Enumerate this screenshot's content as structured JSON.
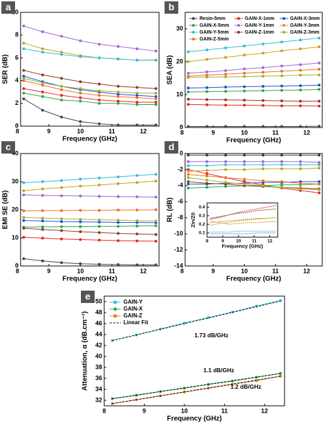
{
  "chart_data": [
    {
      "panel": "a",
      "type": "line",
      "xlabel": "Frequency (GHz)",
      "ylabel": "SER (dB)",
      "xlim": [
        8.1,
        12.5
      ],
      "xticks": [
        8,
        9,
        10,
        11,
        12
      ],
      "ylim": [
        0,
        10
      ],
      "yticks": [
        0,
        2,
        4,
        6,
        8,
        10
      ],
      "x": [
        8.2,
        8.8,
        9.4,
        10.0,
        10.6,
        11.2,
        11.8,
        12.4
      ],
      "series": [
        {
          "color": "#444444",
          "values": [
            2.4,
            1.4,
            0.8,
            0.4,
            0.2,
            0.1,
            0.1,
            0.1
          ]
        },
        {
          "color": "#e8251f",
          "values": [
            3.3,
            3.0,
            2.7,
            2.5,
            2.3,
            2.2,
            2.1,
            2.1
          ]
        },
        {
          "color": "#1f4fd8",
          "values": [
            4.4,
            3.9,
            3.5,
            3.2,
            3.0,
            2.8,
            2.7,
            2.6
          ]
        },
        {
          "color": "#2aa84a",
          "values": [
            2.9,
            2.6,
            2.3,
            2.2,
            2.0,
            2.0,
            1.9,
            1.9
          ]
        },
        {
          "color": "#a066d8",
          "values": [
            8.8,
            8.3,
            7.9,
            7.5,
            7.2,
            7.0,
            6.8,
            6.6
          ]
        },
        {
          "color": "#c8a020",
          "values": [
            7.3,
            6.8,
            6.5,
            6.2,
            6.0,
            5.9,
            5.8,
            5.8
          ]
        },
        {
          "color": "#30c0d0",
          "values": [
            6.8,
            6.5,
            6.3,
            6.1,
            6.0,
            5.9,
            5.8,
            5.8
          ]
        },
        {
          "color": "#8b3a2a",
          "values": [
            4.9,
            4.5,
            4.2,
            3.9,
            3.7,
            3.5,
            3.4,
            3.3
          ]
        },
        {
          "color": "#a0b030",
          "values": [
            4.2,
            3.8,
            3.5,
            3.3,
            3.1,
            3.0,
            2.9,
            2.9
          ]
        },
        {
          "color": "#f07020",
          "values": [
            4.0,
            3.6,
            3.2,
            2.9,
            2.7,
            2.6,
            2.5,
            2.4
          ]
        }
      ]
    },
    {
      "panel": "b",
      "type": "line",
      "xlabel": "Frequency (GHz)",
      "ylabel": "SEA (dB)",
      "xlim": [
        8.1,
        12.5
      ],
      "xticks": [
        8,
        9,
        10,
        11,
        12
      ],
      "ylim": [
        0,
        35
      ],
      "yticks": [
        0,
        10,
        20,
        30
      ],
      "x": [
        8.2,
        8.8,
        9.4,
        10.0,
        10.6,
        11.2,
        11.8,
        12.4
      ],
      "series": [
        {
          "name": "Resin-5mm",
          "color": "#444444",
          "values": [
            0.3,
            0.3,
            0.3,
            0.3,
            0.3,
            0.3,
            0.3,
            0.4
          ]
        },
        {
          "name": "GAIN-X-1mm",
          "color": "#e8251f",
          "values": [
            7.0,
            6.9,
            6.8,
            6.8,
            6.7,
            6.6,
            6.6,
            6.5
          ]
        },
        {
          "name": "GAIN-X-3mm",
          "color": "#1f4fd8",
          "values": [
            12.0,
            12.1,
            12.3,
            12.4,
            12.5,
            12.6,
            12.7,
            12.9
          ]
        },
        {
          "name": "GAIN-X-5mm",
          "color": "#2aa84a",
          "values": [
            10.8,
            10.9,
            11.0,
            11.1,
            11.2,
            11.3,
            11.4,
            11.6
          ]
        },
        {
          "name": "GAIN-Y-1mm",
          "color": "#a066d8",
          "values": [
            16.5,
            16.9,
            17.3,
            17.8,
            18.2,
            18.7,
            19.1,
            19.6
          ]
        },
        {
          "name": "GAIN-Y-3mm",
          "color": "#c8a020",
          "values": [
            20.0,
            20.7,
            21.3,
            22.0,
            22.6,
            23.3,
            23.9,
            24.5
          ]
        },
        {
          "name": "GAIN-Y-5mm",
          "color": "#30c0d0",
          "values": [
            23.0,
            23.6,
            24.2,
            24.8,
            25.4,
            26.0,
            26.6,
            27.2
          ]
        },
        {
          "name": "GAIN-Z-1mm",
          "color": "#8b3a2a",
          "values": [
            8.6,
            8.5,
            8.4,
            8.3,
            8.2,
            8.1,
            8.0,
            8.0
          ]
        },
        {
          "name": "GAIN-Z-3mm",
          "color": "#a0b030",
          "values": [
            15.2,
            15.3,
            15.4,
            15.5,
            15.6,
            15.7,
            15.9,
            16.0
          ]
        },
        {
          "name": "GAIN-Z-5mm",
          "color": "#f07020",
          "values": [
            15.6,
            15.9,
            16.2,
            16.5,
            16.8,
            17.1,
            17.4,
            17.7
          ]
        }
      ]
    },
    {
      "panel": "c",
      "type": "line",
      "xlabel": "Frequency (GHz)",
      "ylabel": "EMI SE (dB)",
      "xlim": [
        8.1,
        12.5
      ],
      "xticks": [
        8,
        9,
        10,
        11,
        12
      ],
      "ylim": [
        0,
        40
      ],
      "yticks": [
        0,
        10,
        20,
        30,
        40
      ],
      "x": [
        8.2,
        8.8,
        9.4,
        10.0,
        10.6,
        11.2,
        11.8,
        12.4
      ],
      "series": [
        {
          "color": "#444444",
          "values": [
            2.6,
            1.8,
            1.2,
            0.8,
            0.6,
            0.5,
            0.4,
            0.4
          ]
        },
        {
          "color": "#e8251f",
          "values": [
            10.2,
            9.9,
            9.6,
            9.4,
            9.2,
            9.0,
            8.9,
            8.8
          ]
        },
        {
          "color": "#1f4fd8",
          "values": [
            16.2,
            16.0,
            15.8,
            15.7,
            15.6,
            15.5,
            15.5,
            15.4
          ]
        },
        {
          "color": "#2aa84a",
          "values": [
            13.8,
            13.9,
            14.0,
            14.0,
            14.1,
            14.1,
            14.2,
            14.3
          ]
        },
        {
          "color": "#a066d8",
          "values": [
            25.3,
            25.1,
            25.0,
            24.9,
            24.8,
            24.7,
            24.6,
            24.5
          ]
        },
        {
          "color": "#c8a020",
          "values": [
            26.8,
            27.4,
            27.9,
            28.4,
            28.8,
            29.3,
            29.7,
            30.2
          ]
        },
        {
          "color": "#30c0d0",
          "values": [
            29.6,
            30.0,
            30.4,
            30.9,
            31.3,
            31.7,
            32.2,
            32.6
          ]
        },
        {
          "color": "#8b3a2a",
          "values": [
            13.4,
            13.0,
            12.6,
            12.2,
            11.9,
            11.6,
            11.4,
            11.2
          ]
        },
        {
          "color": "#a0b030",
          "values": [
            17.3,
            17.0,
            16.8,
            16.6,
            16.4,
            16.3,
            16.1,
            16.0
          ]
        },
        {
          "color": "#f07020",
          "values": [
            19.6,
            19.7,
            19.7,
            19.8,
            19.8,
            19.9,
            19.9,
            20.0
          ]
        }
      ]
    },
    {
      "panel": "d",
      "type": "line",
      "xlabel": "Frequency (GHz)",
      "ylabel": "RL (dB)",
      "xlim": [
        8.1,
        12.5
      ],
      "xticks": [
        8,
        9,
        10,
        11,
        12
      ],
      "ylim": [
        -14,
        0
      ],
      "yticks": [
        0,
        -2,
        -4,
        -6,
        -8,
        -10,
        -12,
        -14
      ],
      "x": [
        8.2,
        8.8,
        9.4,
        10.0,
        10.6,
        11.2,
        11.8,
        12.4
      ],
      "series": [
        {
          "color": "#444444",
          "values": [
            -0.2,
            -0.2,
            -0.2,
            -0.2,
            -0.2,
            -0.2,
            -0.2,
            -0.2
          ]
        },
        {
          "color": "#e8251f",
          "values": [
            -2.0,
            -2.5,
            -3.0,
            -3.5,
            -3.9,
            -4.3,
            -4.6,
            -4.9
          ]
        },
        {
          "color": "#1f4fd8",
          "values": [
            -3.8,
            -3.8,
            -3.7,
            -3.7,
            -3.6,
            -3.6,
            -3.5,
            -3.5
          ]
        },
        {
          "color": "#2aa84a",
          "values": [
            -4.3,
            -4.2,
            -4.1,
            -4.0,
            -4.0,
            -3.9,
            -3.9,
            -3.8
          ]
        },
        {
          "color": "#a066d8",
          "values": [
            -1.0,
            -1.0,
            -1.0,
            -1.0,
            -1.0,
            -1.0,
            -1.0,
            -1.1
          ]
        },
        {
          "color": "#c8a020",
          "values": [
            -2.2,
            -2.1,
            -2.0,
            -2.0,
            -1.9,
            -1.9,
            -1.9,
            -1.8
          ]
        },
        {
          "color": "#30c0d0",
          "values": [
            -1.5,
            -1.5,
            -1.4,
            -1.4,
            -1.4,
            -1.4,
            -1.4,
            -1.4
          ]
        },
        {
          "color": "#8b3a2a",
          "values": [
            -3.5,
            -3.7,
            -3.8,
            -4.0,
            -4.1,
            -4.2,
            -4.3,
            -4.4
          ]
        },
        {
          "color": "#a0b030",
          "values": [
            -3.0,
            -3.3,
            -3.6,
            -3.8,
            -4.0,
            -4.2,
            -4.4,
            -4.5
          ]
        },
        {
          "color": "#f07020",
          "values": [
            -2.6,
            -2.8,
            -3.0,
            -3.2,
            -3.4,
            -3.5,
            -3.7,
            -3.8
          ]
        }
      ]
    },
    {
      "type": "line",
      "xlabel": "Frequency (GHz)",
      "ylabel": "Zin/Z0",
      "xlim": [
        8,
        12.5
      ],
      "xticks": [
        8,
        9,
        10,
        11,
        12
      ],
      "ylim": [
        0.05,
        0.45
      ],
      "yticks": [
        0.1,
        0.2,
        0.3,
        0.4
      ],
      "x": [
        8.2,
        8.8,
        9.4,
        10.0,
        10.6,
        11.2,
        11.8,
        12.4
      ],
      "series": [
        {
          "color": "#e8251f",
          "values": [
            0.26,
            0.28,
            0.31,
            0.34,
            0.36,
            0.38,
            0.4,
            0.42
          ]
        },
        {
          "color": "#8b3a2a",
          "values": [
            0.27,
            0.29,
            0.31,
            0.33,
            0.34,
            0.36,
            0.37,
            0.38
          ]
        },
        {
          "color": "#f07020",
          "values": [
            0.22,
            0.23,
            0.24,
            0.25,
            0.26,
            0.27,
            0.27,
            0.28
          ]
        },
        {
          "color": "#a0b030",
          "values": [
            0.19,
            0.21,
            0.22,
            0.24,
            0.25,
            0.26,
            0.27,
            0.28
          ]
        },
        {
          "color": "#c8a020",
          "values": [
            0.24,
            0.22,
            0.2,
            0.21,
            0.22,
            0.22,
            0.23,
            0.23
          ]
        },
        {
          "color": "#30c0d0",
          "values": [
            0.11,
            0.11,
            0.11,
            0.12,
            0.12,
            0.12,
            0.12,
            0.12
          ]
        },
        {
          "color": "#a066d8",
          "values": [
            0.09,
            0.09,
            0.09,
            0.09,
            0.09,
            0.1,
            0.1,
            0.1
          ]
        }
      ]
    },
    {
      "panel": "e",
      "type": "line",
      "xlabel": "Frequency (GHz)",
      "ylabel": "Attenuation, α (dB.cm⁻¹)",
      "xlim": [
        8,
        12.5
      ],
      "xticks": [
        8,
        9,
        10,
        11,
        12
      ],
      "ylim": [
        31,
        51
      ],
      "yticks": [
        32,
        34,
        36,
        38,
        40,
        42,
        44,
        46,
        48,
        50
      ],
      "x": [
        8.2,
        8.8,
        9.4,
        10.0,
        10.6,
        11.2,
        11.8,
        12.4
      ],
      "series": [
        {
          "name": "GAIN-Y",
          "color": "#30c0d0",
          "values": [
            42.9,
            43.9,
            45.0,
            46.1,
            47.1,
            48.1,
            49.2,
            50.2
          ]
        },
        {
          "name": "GAIN-X",
          "color": "#2aa84a",
          "values": [
            32.3,
            32.9,
            33.6,
            34.2,
            34.9,
            35.5,
            36.2,
            36.9
          ]
        },
        {
          "name": "GAIN-Z",
          "color": "#f07020",
          "values": [
            31.4,
            32.1,
            32.8,
            33.5,
            34.2,
            34.9,
            35.6,
            36.4
          ]
        }
      ],
      "fit": {
        "name": "Linear Fit",
        "color": "#000000",
        "x": [
          8.2,
          12.4
        ],
        "lines": [
          [
            42.9,
            50.1
          ],
          [
            32.3,
            36.9
          ],
          [
            31.4,
            36.4
          ]
        ]
      },
      "annotations": [
        "1.73 dB/GHz",
        "1.1 dB/GHz",
        "1.2 dB/GHz"
      ]
    }
  ]
}
